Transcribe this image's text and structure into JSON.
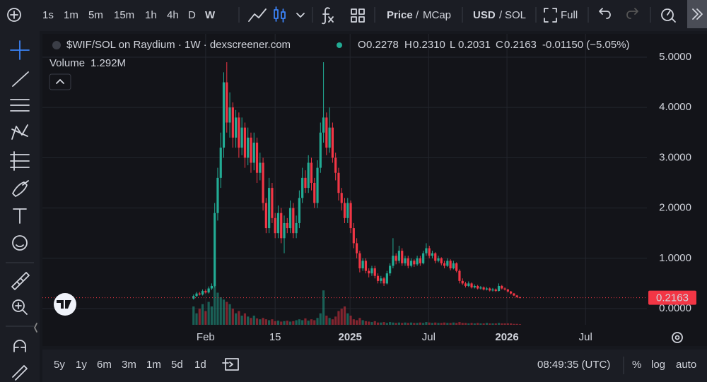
{
  "toolbar": {
    "intervals": [
      "1s",
      "1m",
      "5m",
      "15m",
      "1h",
      "4h",
      "D",
      "W"
    ],
    "active_interval": "W",
    "price_toggle": [
      "Price",
      "MCap"
    ],
    "currency_toggle": [
      "USD",
      "SOL"
    ],
    "separator": "/",
    "full": "Full"
  },
  "bottom_bar": {
    "ranges": [
      "5y",
      "1y",
      "6m",
      "3m",
      "1m",
      "5d",
      "1d"
    ],
    "time": "08:49:35 (UTC)",
    "options": [
      "%",
      "log",
      "auto"
    ]
  },
  "chart_data": {
    "type": "candlestick",
    "title": "$WIF/SOL on Raydium · 1W · dexscreener.com",
    "ohlc_legend": [
      {
        "key": "O",
        "value": "0.2278"
      },
      {
        "key": "H",
        "value": "0.2310"
      },
      {
        "key": "L",
        "value": "0.2031"
      },
      {
        "key": "C",
        "value": "0.2163"
      }
    ],
    "change": "-0.01150 (−5.05%)",
    "up_color": "#22ab94",
    "down_color": "#f23645",
    "grid": true,
    "xlim": [
      -50,
      150
    ],
    "xticks": [
      {
        "value": 4,
        "label": "Feb"
      },
      {
        "value": 27,
        "label": "15"
      },
      {
        "value": 51.8,
        "label": "2025"
      },
      {
        "value": 77.8,
        "label": "Jul"
      },
      {
        "value": 103.7,
        "label": "2026"
      },
      {
        "value": 129.7,
        "label": "Jul"
      }
    ],
    "ylim": [
      -0.323,
      5.463
    ],
    "yticks": [
      {
        "value": 0,
        "label": "0.0000"
      },
      {
        "value": 1,
        "label": "1.0000"
      },
      {
        "value": 2,
        "label": "2.0000"
      },
      {
        "value": 3,
        "label": "3.0000"
      },
      {
        "value": 4,
        "label": "4.0000"
      },
      {
        "value": 5,
        "label": "5.0000"
      }
    ],
    "last_price_label": "0.2163",
    "ohlc": [
      [
        0.2,
        0.28,
        0.18,
        0.25
      ],
      [
        0.25,
        0.33,
        0.23,
        0.3
      ],
      [
        0.3,
        0.33,
        0.26,
        0.28
      ],
      [
        0.28,
        0.38,
        0.26,
        0.35
      ],
      [
        0.35,
        0.38,
        0.3,
        0.32
      ],
      [
        0.32,
        0.44,
        0.3,
        0.4
      ],
      [
        0.4,
        0.5,
        0.37,
        0.45
      ],
      [
        0.45,
        2.1,
        0.42,
        1.9
      ],
      [
        1.9,
        2.8,
        1.75,
        2.6
      ],
      [
        2.6,
        3.5,
        2.4,
        3.2
      ],
      [
        3.2,
        4.7,
        3.0,
        4.5
      ],
      [
        4.5,
        4.9,
        3.5,
        3.7
      ],
      [
        3.7,
        4.3,
        3.4,
        4.0
      ],
      [
        4.0,
        4.1,
        3.2,
        3.4
      ],
      [
        3.4,
        3.95,
        3.2,
        3.8
      ],
      [
        3.8,
        3.9,
        3.0,
        3.2
      ],
      [
        3.2,
        3.8,
        3.05,
        3.6
      ],
      [
        3.6,
        3.7,
        2.8,
        3.0
      ],
      [
        3.0,
        3.6,
        2.85,
        3.4
      ],
      [
        3.4,
        3.5,
        2.7,
        2.9
      ],
      [
        2.9,
        3.5,
        2.75,
        3.3
      ],
      [
        3.3,
        3.4,
        2.5,
        2.7
      ],
      [
        2.7,
        3.1,
        2.55,
        2.9
      ],
      [
        2.9,
        3.0,
        1.95,
        2.1
      ],
      [
        2.1,
        2.2,
        1.5,
        1.6
      ],
      [
        1.6,
        2.6,
        1.5,
        2.4
      ],
      [
        2.4,
        2.5,
        1.7,
        1.8
      ],
      [
        1.8,
        1.9,
        1.4,
        1.5
      ],
      [
        1.5,
        2.05,
        1.4,
        1.9
      ],
      [
        1.9,
        2.0,
        1.3,
        1.4
      ],
      [
        1.4,
        1.85,
        1.1,
        1.7
      ],
      [
        1.7,
        1.8,
        1.5,
        1.6
      ],
      [
        1.6,
        2.15,
        1.5,
        2.0
      ],
      [
        2.0,
        2.1,
        1.4,
        1.5
      ],
      [
        1.5,
        1.85,
        1.4,
        1.7
      ],
      [
        1.7,
        2.35,
        1.6,
        2.2
      ],
      [
        2.2,
        2.8,
        2.1,
        2.6
      ],
      [
        2.6,
        2.75,
        2.3,
        2.4
      ],
      [
        2.4,
        3.05,
        2.3,
        2.9
      ],
      [
        2.9,
        3.0,
        2.35,
        2.5
      ],
      [
        2.5,
        2.6,
        2.0,
        2.1
      ],
      [
        2.1,
        2.95,
        2.0,
        2.8
      ],
      [
        2.8,
        3.7,
        2.7,
        3.5
      ],
      [
        3.5,
        4.9,
        3.3,
        3.8
      ],
      [
        3.8,
        3.9,
        3.05,
        3.2
      ],
      [
        3.2,
        4.0,
        3.1,
        3.6
      ],
      [
        3.6,
        3.7,
        2.9,
        3.0
      ],
      [
        3.0,
        3.1,
        2.55,
        2.7
      ],
      [
        2.7,
        2.8,
        2.15,
        2.3
      ],
      [
        2.3,
        2.4,
        1.95,
        2.1
      ],
      [
        2.1,
        2.2,
        1.7,
        1.8
      ],
      [
        1.8,
        2.2,
        1.7,
        2.1
      ],
      [
        2.1,
        2.15,
        1.5,
        1.6
      ],
      [
        1.6,
        1.7,
        1.2,
        1.3
      ],
      [
        1.3,
        1.4,
        1.0,
        1.1
      ],
      [
        1.1,
        1.15,
        0.72,
        0.8
      ],
      [
        0.8,
        1.0,
        0.75,
        0.95
      ],
      [
        0.95,
        1.0,
        0.7,
        0.75
      ],
      [
        0.75,
        0.8,
        0.62,
        0.7
      ],
      [
        0.7,
        0.85,
        0.65,
        0.8
      ],
      [
        0.8,
        0.85,
        0.6,
        0.65
      ],
      [
        0.65,
        0.7,
        0.5,
        0.55
      ],
      [
        0.55,
        0.65,
        0.5,
        0.6
      ],
      [
        0.6,
        0.63,
        0.45,
        0.5
      ],
      [
        0.5,
        0.75,
        0.48,
        0.7
      ],
      [
        0.7,
        0.9,
        0.65,
        0.85
      ],
      [
        0.85,
        1.4,
        0.8,
        1.05
      ],
      [
        1.05,
        1.1,
        0.88,
        0.95
      ],
      [
        0.95,
        1.25,
        0.9,
        1.15
      ],
      [
        1.15,
        1.2,
        0.85,
        0.9
      ],
      [
        0.9,
        1.05,
        0.85,
        1.0
      ],
      [
        1.0,
        1.05,
        0.8,
        0.85
      ],
      [
        0.85,
        1.0,
        0.82,
        0.95
      ],
      [
        0.95,
        0.98,
        0.83,
        0.88
      ],
      [
        0.88,
        1.05,
        0.85,
        1.0
      ],
      [
        1.0,
        1.05,
        0.85,
        0.9
      ],
      [
        0.9,
        1.15,
        0.88,
        1.1
      ],
      [
        1.1,
        1.3,
        1.05,
        1.2
      ],
      [
        1.2,
        1.25,
        1.0,
        1.05
      ],
      [
        1.05,
        1.15,
        1.0,
        1.1
      ],
      [
        1.1,
        1.12,
        0.9,
        0.95
      ],
      [
        0.95,
        1.05,
        0.92,
        1.0
      ],
      [
        1.0,
        1.02,
        0.86,
        0.9
      ],
      [
        0.9,
        0.95,
        0.8,
        0.85
      ],
      [
        0.85,
        1.0,
        0.83,
        0.95
      ],
      [
        0.95,
        0.98,
        0.76,
        0.8
      ],
      [
        0.8,
        0.95,
        0.78,
        0.9
      ],
      [
        0.9,
        0.92,
        0.72,
        0.75
      ],
      [
        0.75,
        0.78,
        0.5,
        0.55
      ],
      [
        0.55,
        0.6,
        0.47,
        0.5
      ],
      [
        0.5,
        0.53,
        0.42,
        0.45
      ],
      [
        0.45,
        0.54,
        0.43,
        0.5
      ],
      [
        0.5,
        0.52,
        0.4,
        0.42
      ],
      [
        0.42,
        0.48,
        0.4,
        0.45
      ],
      [
        0.45,
        0.47,
        0.38,
        0.4
      ],
      [
        0.4,
        0.45,
        0.38,
        0.42
      ],
      [
        0.42,
        0.44,
        0.36,
        0.38
      ],
      [
        0.38,
        0.43,
        0.36,
        0.4
      ],
      [
        0.4,
        0.42,
        0.34,
        0.36
      ],
      [
        0.36,
        0.41,
        0.34,
        0.38
      ],
      [
        0.38,
        0.4,
        0.33,
        0.35
      ],
      [
        0.35,
        0.5,
        0.34,
        0.45
      ],
      [
        0.45,
        0.47,
        0.38,
        0.4
      ],
      [
        0.4,
        0.42,
        0.36,
        0.38
      ],
      [
        0.38,
        0.39,
        0.32,
        0.34
      ],
      [
        0.34,
        0.35,
        0.28,
        0.3
      ],
      [
        0.3,
        0.31,
        0.25,
        0.26
      ],
      [
        0.26,
        0.27,
        0.22,
        0.2278
      ],
      [
        0.2278,
        0.231,
        0.2031,
        0.2163
      ]
    ],
    "volume": {
      "name": "Volume",
      "last_label": "1.292M",
      "vlim": [
        0,
        100
      ],
      "values": [
        40,
        25,
        35,
        45,
        30,
        50,
        40,
        85,
        70,
        60,
        55,
        50,
        45,
        35,
        25,
        30,
        20,
        25,
        18,
        15,
        20,
        14,
        12,
        15,
        12,
        10,
        12,
        8,
        9,
        7,
        8,
        9,
        7,
        8,
        10,
        12,
        10,
        14,
        9,
        12,
        10,
        15,
        25,
        75,
        20,
        15,
        12,
        18,
        30,
        35,
        40,
        25,
        20,
        12,
        10,
        15,
        10,
        8,
        7,
        6,
        8,
        5,
        5,
        6,
        4,
        6,
        5,
        4,
        5,
        4,
        5,
        4,
        5,
        4,
        4,
        5,
        4,
        6,
        5,
        4,
        5,
        4,
        4,
        5,
        4,
        4,
        5,
        4,
        6,
        4,
        4,
        3,
        4,
        3,
        4,
        3,
        3,
        4,
        3,
        3,
        3,
        4,
        3,
        3,
        3,
        3,
        2,
        2,
        1.292
      ]
    }
  }
}
